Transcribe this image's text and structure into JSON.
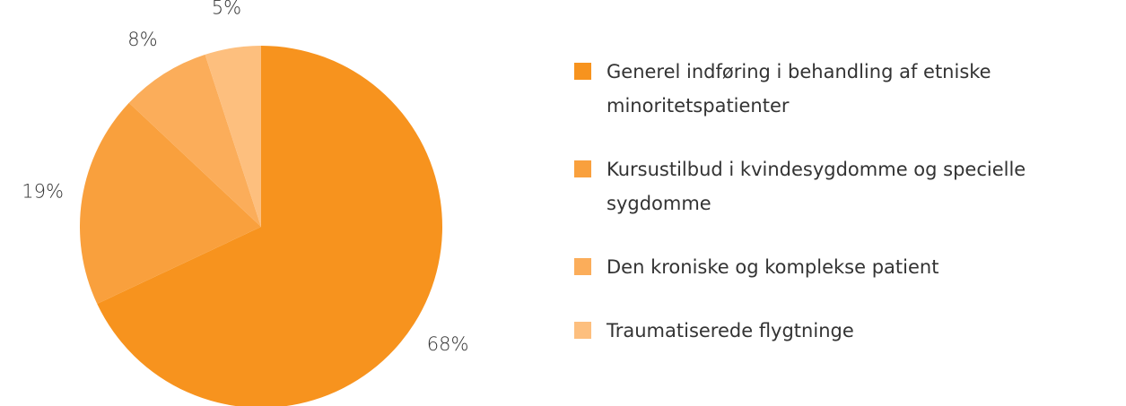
{
  "chart_data": {
    "type": "pie",
    "categories": [
      "Generel indføring i behandling af etniske minoritetspatienter",
      "Kursustilbud i kvindesygdomme og specielle sygdomme",
      "Den kroniske og komplekse patient",
      "Traumatiserede flygtninge"
    ],
    "values": [
      68,
      19,
      8,
      5
    ],
    "value_labels": [
      "68%",
      "19%",
      "8%",
      "5%"
    ],
    "colors": [
      "#f7931e",
      "#f9a03d",
      "#fbad5a",
      "#fdbf7e"
    ],
    "legend": "right"
  }
}
